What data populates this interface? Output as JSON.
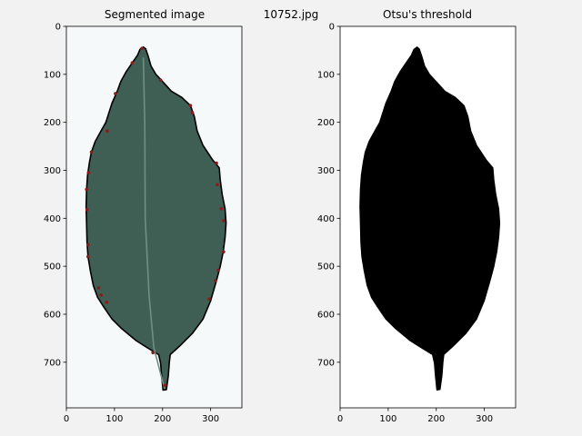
{
  "figure": {
    "suptitle": "10752.jpg",
    "background": "#f2f2f2"
  },
  "panels": [
    {
      "title": "Segmented image",
      "kind": "segmented",
      "xlim": [
        0,
        365
      ],
      "ylim": [
        795,
        0
      ],
      "xticks": [
        "0",
        "100",
        "200",
        "300"
      ],
      "yticks": [
        "0",
        "100",
        "200",
        "300",
        "400",
        "500",
        "600",
        "700"
      ],
      "paper_color": "#f6f9f9",
      "leaf_color": "#3f5f55",
      "contour_color": "#000000",
      "keypoint_color": "#8b1a1a"
    },
    {
      "title": "Otsu's threshold",
      "kind": "binary",
      "xlim": [
        0,
        365
      ],
      "ylim": [
        795,
        0
      ],
      "xticks": [
        "0",
        "100",
        "200",
        "300"
      ],
      "yticks": [
        "0",
        "100",
        "200",
        "300",
        "400",
        "500",
        "600",
        "700"
      ],
      "background_color": "#ffffff",
      "mask_color": "#000000"
    }
  ],
  "chart_data": {
    "type": "image",
    "leaf_outline_xy": [
      [
        160,
        43
      ],
      [
        153,
        48
      ],
      [
        148,
        60
      ],
      [
        137,
        76
      ],
      [
        124,
        95
      ],
      [
        113,
        115
      ],
      [
        106,
        135
      ],
      [
        95,
        160
      ],
      [
        82,
        200
      ],
      [
        68,
        225
      ],
      [
        60,
        240
      ],
      [
        52,
        262
      ],
      [
        48,
        283
      ],
      [
        44,
        310
      ],
      [
        42,
        340
      ],
      [
        41,
        375
      ],
      [
        42,
        410
      ],
      [
        43,
        450
      ],
      [
        45,
        480
      ],
      [
        50,
        510
      ],
      [
        56,
        540
      ],
      [
        65,
        565
      ],
      [
        78,
        585
      ],
      [
        95,
        610
      ],
      [
        115,
        630
      ],
      [
        145,
        655
      ],
      [
        172,
        672
      ],
      [
        192,
        684
      ],
      [
        196,
        702
      ],
      [
        198,
        728
      ],
      [
        201,
        758
      ],
      [
        208,
        757
      ],
      [
        212,
        728
      ],
      [
        214,
        700
      ],
      [
        216,
        684
      ],
      [
        236,
        666
      ],
      [
        262,
        640
      ],
      [
        284,
        610
      ],
      [
        300,
        572
      ],
      [
        312,
        530
      ],
      [
        320,
        500
      ],
      [
        326,
        470
      ],
      [
        330,
        440
      ],
      [
        332,
        410
      ],
      [
        330,
        380
      ],
      [
        324,
        350
      ],
      [
        320,
        320
      ],
      [
        318,
        295
      ],
      [
        304,
        278
      ],
      [
        284,
        248
      ],
      [
        272,
        218
      ],
      [
        266,
        188
      ],
      [
        258,
        165
      ],
      [
        240,
        148
      ],
      [
        218,
        135
      ],
      [
        200,
        115
      ],
      [
        186,
        100
      ],
      [
        176,
        83
      ],
      [
        170,
        62
      ],
      [
        165,
        47
      ]
    ],
    "keypoints_xy": [
      [
        157,
        46
      ],
      [
        137,
        76
      ],
      [
        196,
        112
      ],
      [
        102,
        140
      ],
      [
        85,
        218
      ],
      [
        52,
        262
      ],
      [
        46,
        305
      ],
      [
        42,
        340
      ],
      [
        43,
        382
      ],
      [
        45,
        455
      ],
      [
        45,
        480
      ],
      [
        67,
        545
      ],
      [
        72,
        560
      ],
      [
        84,
        575
      ],
      [
        180,
        680
      ],
      [
        205,
        748
      ],
      [
        297,
        568
      ],
      [
        310,
        530
      ],
      [
        316,
        508
      ],
      [
        327,
        470
      ],
      [
        327,
        405
      ],
      [
        322,
        380
      ],
      [
        314,
        330
      ],
      [
        312,
        285
      ],
      [
        262,
        180
      ],
      [
        258,
        165
      ]
    ],
    "midrib_xy": [
      [
        160,
        65
      ],
      [
        163,
        200
      ],
      [
        164,
        400
      ],
      [
        172,
        560
      ],
      [
        182,
        670
      ],
      [
        204,
        755
      ]
    ]
  }
}
